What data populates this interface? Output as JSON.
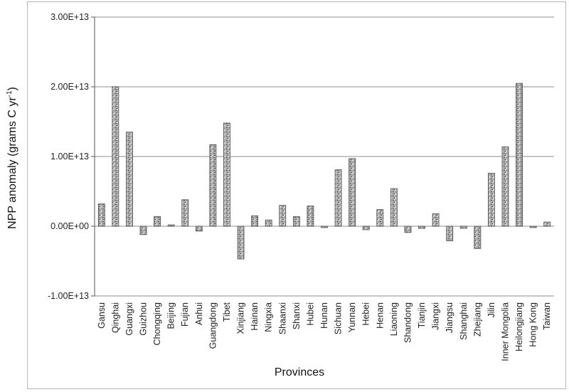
{
  "chart_data": {
    "type": "bar",
    "title": "",
    "xlabel": "Provinces",
    "ylabel": "NPP anomaly (grams C yr",
    "ylabel_superscript": "-1",
    "ylabel_close": ")",
    "ylim": [
      -10000000000000.0,
      30000000000000.0
    ],
    "yticks": [
      {
        "value": 30000000000000.0,
        "label": "3.00E+13"
      },
      {
        "value": 20000000000000.0,
        "label": "2.00E+13"
      },
      {
        "value": 10000000000000.0,
        "label": "1.00E+13"
      },
      {
        "value": 0,
        "label": "0.00E+00"
      },
      {
        "value": -10000000000000.0,
        "label": "-1.00E+13"
      }
    ],
    "grid": true,
    "legend": "none",
    "bar_color": "#9a9a9a",
    "categories": [
      "Gansu",
      "Qinghai",
      "Guangxi",
      "Guizhou",
      "Chongqing",
      "Beijing",
      "Fujian",
      "Anhui",
      "Guangdong",
      "Tibet",
      "Xinjiang",
      "Hainan",
      "Ningxia",
      "Shaanxi",
      "Shanxi",
      "Hubei",
      "Hunan",
      "Sichuan",
      "Yunnan",
      "Hebei",
      "Henan",
      "Liaoning",
      "Shandong",
      "Tianjin",
      "Jiangxi",
      "Jiangsu",
      "Shanghai",
      "Zhejiang",
      "Jilin",
      "Inner Mongolia",
      "Heilongjiang",
      "Hong Kong",
      "Taiwan"
    ],
    "values": [
      3200000000000.0,
      20000000000000.0,
      13500000000000.0,
      -1200000000000.0,
      1400000000000.0,
      200000000000.0,
      3800000000000.0,
      -700000000000.0,
      11700000000000.0,
      14800000000000.0,
      -4700000000000.0,
      1500000000000.0,
      900000000000.0,
      3000000000000.0,
      1400000000000.0,
      2900000000000.0,
      -200000000000.0,
      8100000000000.0,
      9700000000000.0,
      -500000000000.0,
      2400000000000.0,
      5400000000000.0,
      -900000000000.0,
      -300000000000.0,
      1800000000000.0,
      -2100000000000.0,
      -300000000000.0,
      -3200000000000.0,
      7600000000000.0,
      11400000000000.0,
      20500000000000.0,
      -200000000000.0,
      600000000000.0
    ]
  }
}
